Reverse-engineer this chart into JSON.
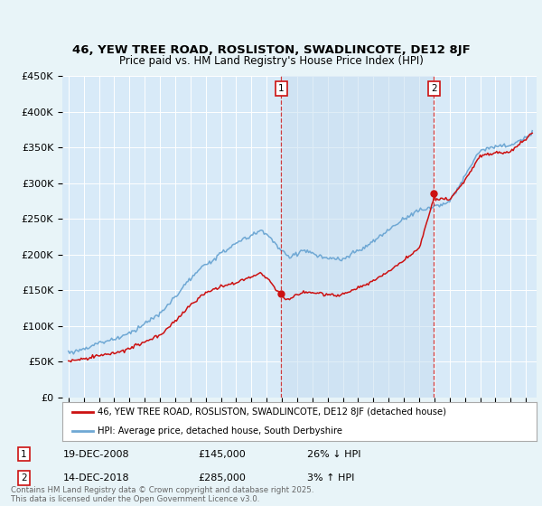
{
  "title1": "46, YEW TREE ROAD, ROSLISTON, SWADLINCOTE, DE12 8JF",
  "title2": "Price paid vs. HM Land Registry's House Price Index (HPI)",
  "background_color": "#e8f4f8",
  "plot_bg_color": "#d8eaf8",
  "legend_label_red": "46, YEW TREE ROAD, ROSLISTON, SWADLINCOTE, DE12 8JF (detached house)",
  "legend_label_blue": "HPI: Average price, detached house, South Derbyshire",
  "marker1_price": 145000,
  "marker1_pct": "26% ↓ HPI",
  "marker1_date_str": "19-DEC-2008",
  "marker1_year": 2008.96,
  "marker2_price": 285000,
  "marker2_pct": "3% ↑ HPI",
  "marker2_date_str": "14-DEC-2018",
  "marker2_year": 2018.96,
  "footer": "Contains HM Land Registry data © Crown copyright and database right 2025.\nThis data is licensed under the Open Government Licence v3.0.",
  "ylim": [
    0,
    450000
  ],
  "yticks": [
    0,
    50000,
    100000,
    150000,
    200000,
    250000,
    300000,
    350000,
    400000,
    450000
  ],
  "xlim_left": 1994.6,
  "xlim_right": 2025.7,
  "start_year": 1995,
  "end_year": 2025
}
